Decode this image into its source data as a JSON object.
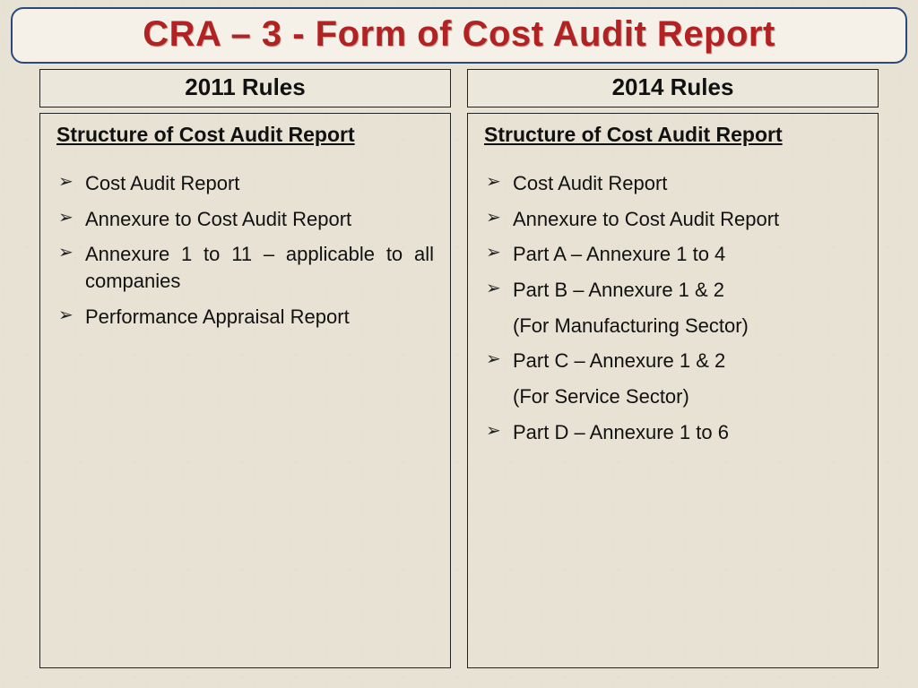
{
  "title": "CRA – 3 - Form of Cost Audit Report",
  "columns": [
    {
      "header": "2011 Rules",
      "sub_header": "Structure of Cost Audit Report",
      "items": [
        {
          "text": "Cost Audit Report",
          "bullet": true
        },
        {
          "text": "Annexure to Cost Audit Report",
          "bullet": true
        },
        {
          "text": "Annexure 1 to 11 – applicable to all companies",
          "bullet": true
        },
        {
          "text": "Performance Appraisal Report",
          "bullet": true
        }
      ]
    },
    {
      "header": "2014 Rules",
      "sub_header": "Structure of Cost Audit Report",
      "items": [
        {
          "text": "Cost Audit Report",
          "bullet": true
        },
        {
          "text": "Annexure to Cost Audit Report",
          "bullet": true
        },
        {
          "text": "Part A – Annexure 1 to 4",
          "bullet": true
        },
        {
          "text": "Part B – Annexure 1 & 2",
          "bullet": true
        },
        {
          "text": "(For Manufacturing Sector)",
          "bullet": false
        },
        {
          "text": "Part C – Annexure 1 & 2",
          "bullet": true
        },
        {
          "text": "(For Service Sector)",
          "bullet": false
        },
        {
          "text": "Part D – Annexure 1 to 6",
          "bullet": true
        }
      ]
    }
  ],
  "styling": {
    "title_color": "#b22222",
    "title_border_color": "#2a4a7a",
    "background_color": "#e8e2d5",
    "text_color": "#111111",
    "title_fontsize": 40,
    "header_fontsize": 26,
    "sub_header_fontsize": 23,
    "body_fontsize": 22,
    "box_border_color": "#222222"
  }
}
